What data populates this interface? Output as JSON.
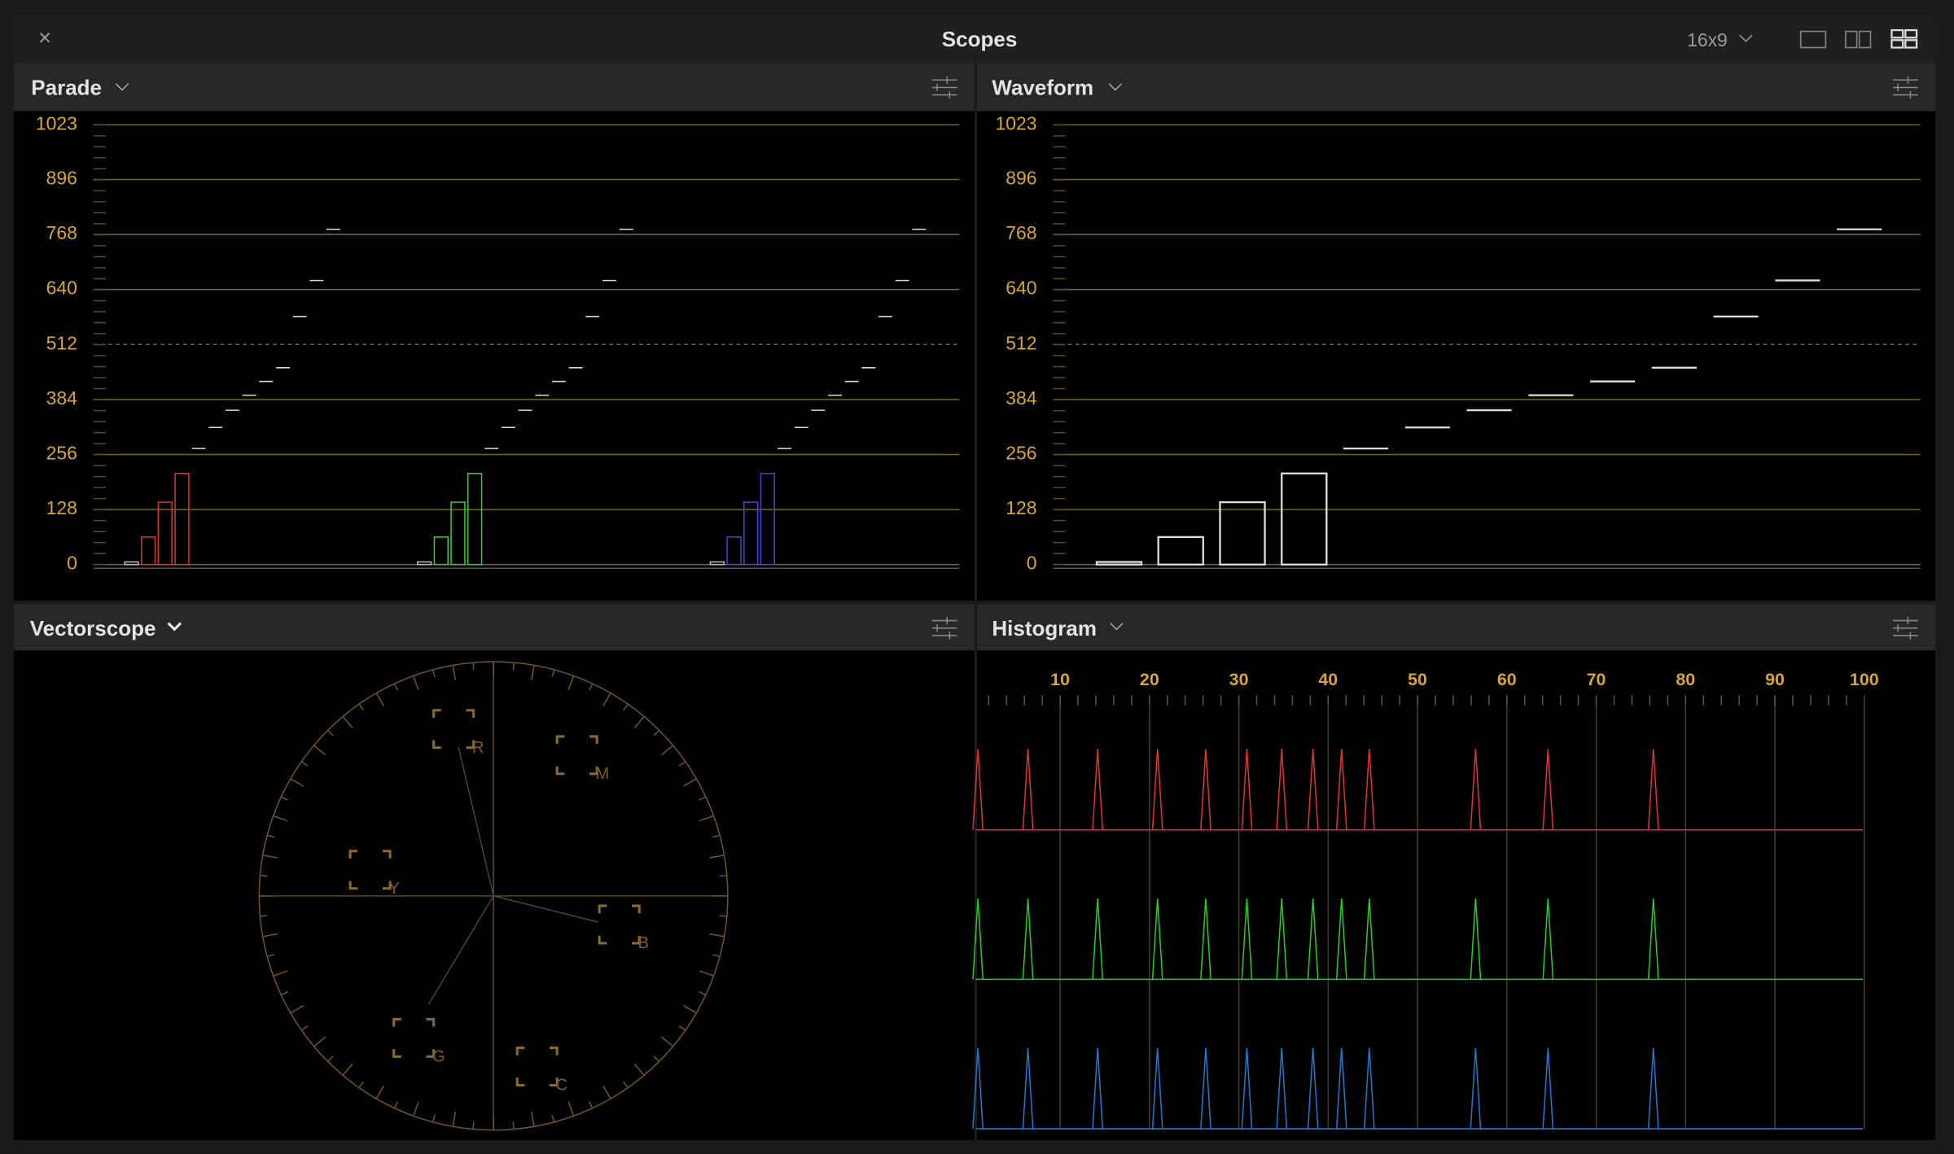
{
  "window": {
    "title": "Scopes",
    "aspect": "16x9"
  },
  "parade": {
    "title": "Parade",
    "yticks": [
      0,
      128,
      256,
      384,
      512,
      640,
      768,
      896,
      1023
    ],
    "ylim": [
      0,
      1023
    ],
    "levels": [
      6,
      64,
      145,
      212,
      270,
      319,
      359,
      394,
      426,
      458,
      577,
      661,
      780
    ]
  },
  "waveform": {
    "title": "Waveform",
    "yticks": [
      0,
      128,
      256,
      384,
      512,
      640,
      768,
      896,
      1023
    ],
    "ylim": [
      0,
      1023
    ],
    "levels": [
      6,
      64,
      145,
      212,
      270,
      319,
      359,
      394,
      426,
      458,
      577,
      661,
      780
    ]
  },
  "vectorscope": {
    "title": "Vectorscope",
    "targets": [
      "R",
      "M",
      "Y",
      "B",
      "G",
      "C"
    ]
  },
  "histogram": {
    "title": "Histogram",
    "xticks": [
      10,
      20,
      30,
      40,
      50,
      60,
      70,
      80,
      90,
      100
    ],
    "xlim": [
      0,
      100
    ],
    "peaks": [
      0.8,
      6.4,
      14.2,
      20.9,
      26.3,
      30.9,
      34.8,
      38.3,
      41.5,
      44.6,
      56.5,
      64.6,
      76.4
    ]
  }
}
